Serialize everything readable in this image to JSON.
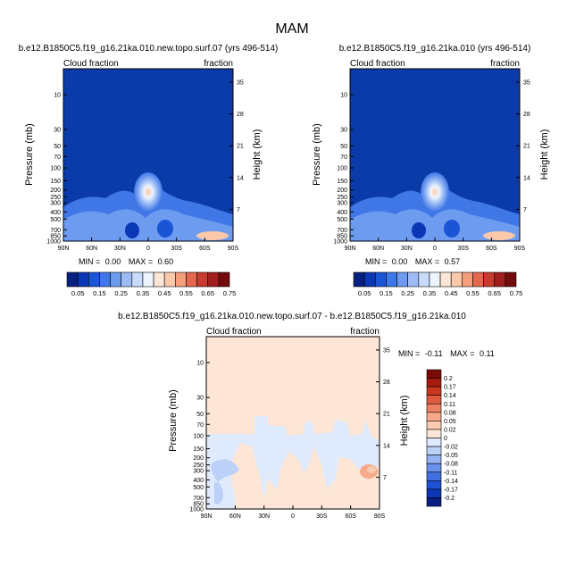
{
  "page_title": "MAM",
  "colors": {
    "abs_scale": [
      "#08207f",
      "#0a37b5",
      "#1a55d6",
      "#3f77e6",
      "#6d9bf0",
      "#9dbcf6",
      "#c8dbfb",
      "#eef4fd",
      "#fde6d5",
      "#fbc9aa",
      "#f59e7a",
      "#e3684e",
      "#c93a2f",
      "#a11e1f",
      "#730b0b"
    ],
    "diff_scale": [
      "#08207f",
      "#0a37b5",
      "#1f52d2",
      "#3f70e2",
      "#6890ec",
      "#93b2f3",
      "#bcd1f8",
      "#dfeafc",
      "#fde6d5",
      "#fbcbb0",
      "#f7a98a",
      "#ef8163",
      "#e05a3e",
      "#c9371f",
      "#a61c10",
      "#7a0b05"
    ],
    "background_abs": "#0b3aa9",
    "background_diff": "#fde6d5"
  },
  "chart_data": [
    {
      "type": "heatmap",
      "id": "panel-left",
      "title": "b.e12.B1850C5.f19_g16.21ka.010.new.topo.surf.07 (yrs 496-514)",
      "left_label": "Cloud fraction",
      "right_label": "fraction",
      "ylabel": "Pressure (mb)",
      "ylabel_right": "Height (km)",
      "x_ticks": [
        "90N",
        "60N",
        "30N",
        "0",
        "30S",
        "60S",
        "90S"
      ],
      "y_ticks": [
        "10",
        "30",
        "50",
        "70",
        "100",
        "150",
        "200",
        "250",
        "300",
        "400",
        "500",
        "700",
        "850",
        "1000"
      ],
      "y_right_ticks": [
        "35",
        "28",
        "21",
        "14",
        "7"
      ],
      "stats": {
        "min_label": "MIN =",
        "min": "0.00",
        "max_label": "MAX =",
        "max": "0.60"
      },
      "colorbar": {
        "labels": [
          "0.05",
          "0.15",
          "0.25",
          "0.35",
          "0.45",
          "0.55",
          "0.65",
          "0.75"
        ]
      }
    },
    {
      "type": "heatmap",
      "id": "panel-right",
      "title": "b.e12.B1850C5.f19_g16.21ka.010 (yrs 496-514)",
      "left_label": "Cloud fraction",
      "right_label": "fraction",
      "ylabel": "Pressure (mb)",
      "ylabel_right": "Height (km)",
      "x_ticks": [
        "90N",
        "60N",
        "30N",
        "0",
        "30S",
        "60S",
        "90S"
      ],
      "y_ticks": [
        "10",
        "30",
        "50",
        "70",
        "100",
        "150",
        "200",
        "250",
        "300",
        "400",
        "500",
        "700",
        "850",
        "1000"
      ],
      "y_right_ticks": [
        "35",
        "28",
        "21",
        "14",
        "7"
      ],
      "stats": {
        "min_label": "MIN =",
        "min": "0.00",
        "max_label": "MAX =",
        "max": "0.57"
      },
      "colorbar": {
        "labels": [
          "0.05",
          "0.15",
          "0.25",
          "0.35",
          "0.45",
          "0.55",
          "0.65",
          "0.75"
        ]
      }
    },
    {
      "type": "heatmap",
      "id": "panel-diff",
      "title": "b.e12.B1850C5.f19_g16.21ka.010.new.topo.surf.07 - b.e12.B1850C5.f19_g16.21ka.010",
      "left_label": "Cloud fraction",
      "right_label": "fraction",
      "ylabel": "Pressure (mb)",
      "ylabel_right": "Height (km)",
      "x_ticks": [
        "90N",
        "60N",
        "30N",
        "0",
        "30S",
        "60S",
        "90S"
      ],
      "y_ticks": [
        "10",
        "30",
        "50",
        "70",
        "100",
        "150",
        "200",
        "250",
        "300",
        "400",
        "500",
        "700",
        "850",
        "1000"
      ],
      "y_right_ticks": [
        "35",
        "28",
        "21",
        "14",
        "7"
      ],
      "stats": {
        "min_label": "MIN =",
        "min": "-0.11",
        "max_label": "MAX =",
        "max": "0.11"
      },
      "colorbar": {
        "labels": [
          "0.2",
          "0.17",
          "0.14",
          "0.11",
          "0.08",
          "0.05",
          "0.02",
          "0",
          "-0.02",
          "-0.05",
          "-0.08",
          "-0.11",
          "-0.14",
          "-0.17",
          "-0.2"
        ]
      }
    }
  ]
}
